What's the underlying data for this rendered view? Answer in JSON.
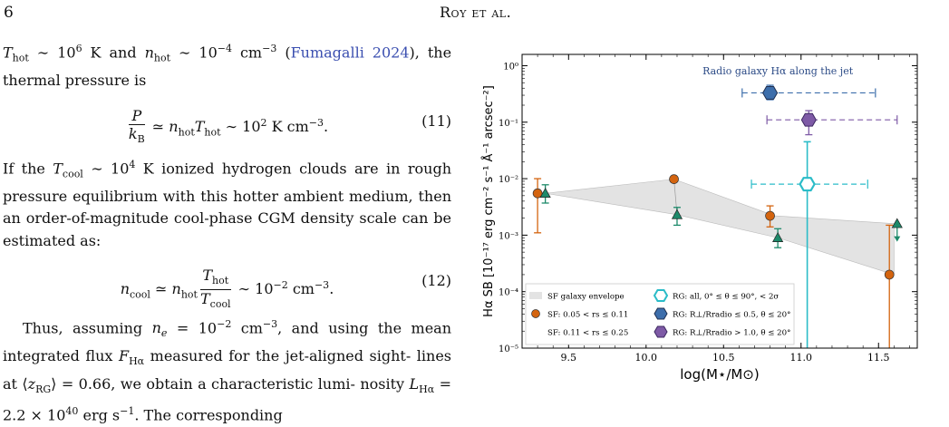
{
  "header": {
    "page_number": "6",
    "running_title": "Roy et al."
  },
  "text": {
    "p1_a": "T",
    "p1_cite": "Fumagalli 2024",
    "eq11_number": "(11)",
    "eq12_number": "(12)",
    "p2": "If the T",
    "p3_start": "Thus, assuming"
  },
  "chart_data": {
    "type": "scatter",
    "title": "Radio galaxy Hα along the jet",
    "xlabel": "log(M⋆/M⊙)",
    "ylabel": "Hα SB [10⁻¹⁷ erg cm⁻² s⁻¹ Å⁻¹ arcsec⁻²]",
    "xlim": [
      9.2,
      11.75
    ],
    "ylim_log10": [
      -5,
      0.2
    ],
    "y_scale": "log",
    "x_ticks": [
      "9.5",
      "10.0",
      "10.5",
      "11.0",
      "11.5"
    ],
    "y_ticks": [
      "10⁻⁵",
      "10⁻⁴",
      "10⁻³",
      "10⁻²",
      "10⁻¹",
      "10⁰"
    ],
    "legend_position": "bottom-left",
    "legend": [
      "SF galaxy envelope",
      "SF: 0.05 < rs ≤ 0.11",
      "SF: 0.11 < rs ≤ 0.25",
      "RG: all, 0° ≤ θ ≤ 90°, < 2σ",
      "RG: R⊥/Rradio ≤ 0.5, θ ≤ 20°",
      "RG: R⊥/Rradio > 1.0, θ ≤ 20°"
    ],
    "colors": {
      "sf1": "#d4640f",
      "sf2": "#1d8a6a",
      "rg_all": "#2bbcc8",
      "rg1": "#3d6eab",
      "rg2": "#7e5aa6",
      "envelope": "#e3e3e3"
    },
    "envelope": [
      [
        9.35,
        0.0055
      ],
      [
        10.18,
        0.0098
      ],
      [
        10.83,
        0.0022
      ],
      [
        11.6,
        0.0016
      ],
      [
        11.6,
        0.0002
      ],
      [
        10.85,
        0.0009
      ],
      [
        10.2,
        0.0023
      ],
      [
        9.35,
        0.0055
      ]
    ],
    "sf_low": [
      {
        "x": 9.3,
        "y": 0.0055,
        "ylo": 0.0011,
        "yhi": 0.01
      },
      {
        "x": 10.18,
        "y": 0.0098,
        "ylo": 0.0098,
        "yhi": 0.0098
      },
      {
        "x": 10.8,
        "y": 0.0022,
        "ylo": 0.0014,
        "yhi": 0.0033
      },
      {
        "x": 11.57,
        "y": 0.0002,
        "ylo": 1e-05,
        "yhi": 0.0015
      }
    ],
    "sf_high": [
      {
        "x": 9.35,
        "y": 0.0055,
        "ylo": 0.0037,
        "yhi": 0.0078
      },
      {
        "x": 10.2,
        "y": 0.0023,
        "ylo": 0.0015,
        "yhi": 0.0031
      },
      {
        "x": 10.85,
        "y": 0.0009,
        "ylo": 0.0006,
        "yhi": 0.0013
      },
      {
        "x": 11.62,
        "y": 0.0016,
        "upper_limit": true
      }
    ],
    "rg_all": {
      "x": 11.04,
      "y": 0.008,
      "xlo": 10.68,
      "xhi": 11.43,
      "yhi": 0.045,
      "ylo": 1e-05
    },
    "rg_inner": {
      "x": 10.8,
      "y": 0.33,
      "xlo": 10.62,
      "xhi": 11.48,
      "ylo": 0.25,
      "yhi": 0.45
    },
    "rg_outer": {
      "x": 11.05,
      "y": 0.11,
      "xlo": 10.78,
      "xhi": 11.62,
      "ylo": 0.06,
      "yhi": 0.16
    }
  }
}
